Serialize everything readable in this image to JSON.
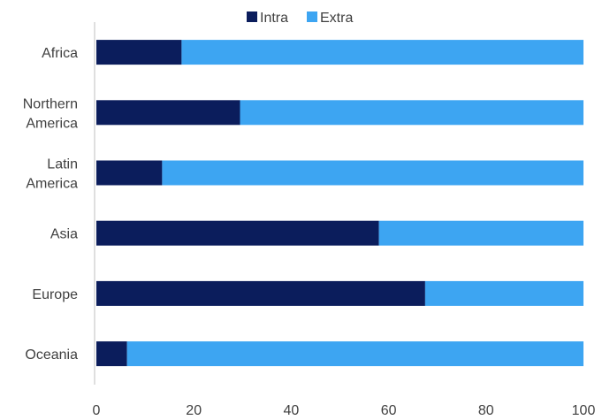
{
  "chart_data": {
    "type": "bar",
    "orientation": "horizontal",
    "stacked": true,
    "categories": [
      [
        "Africa"
      ],
      [
        "Northern",
        "America"
      ],
      [
        "Latin",
        "America"
      ],
      [
        "Asia"
      ],
      [
        "Europe"
      ],
      [
        "Oceania"
      ]
    ],
    "series": [
      {
        "name": "Intra",
        "color": "#0b1d5c",
        "values": [
          17.5,
          29.5,
          13.5,
          58,
          67.5,
          6.3
        ]
      },
      {
        "name": "Extra",
        "color": "#3da5f2",
        "values": [
          82.5,
          70.5,
          86.5,
          42,
          32.5,
          93.7
        ]
      }
    ],
    "xlim": [
      0,
      100
    ],
    "xticks": [
      "0",
      "20",
      "40",
      "60",
      "80",
      "100"
    ],
    "grid": false,
    "legend": "top-center"
  }
}
